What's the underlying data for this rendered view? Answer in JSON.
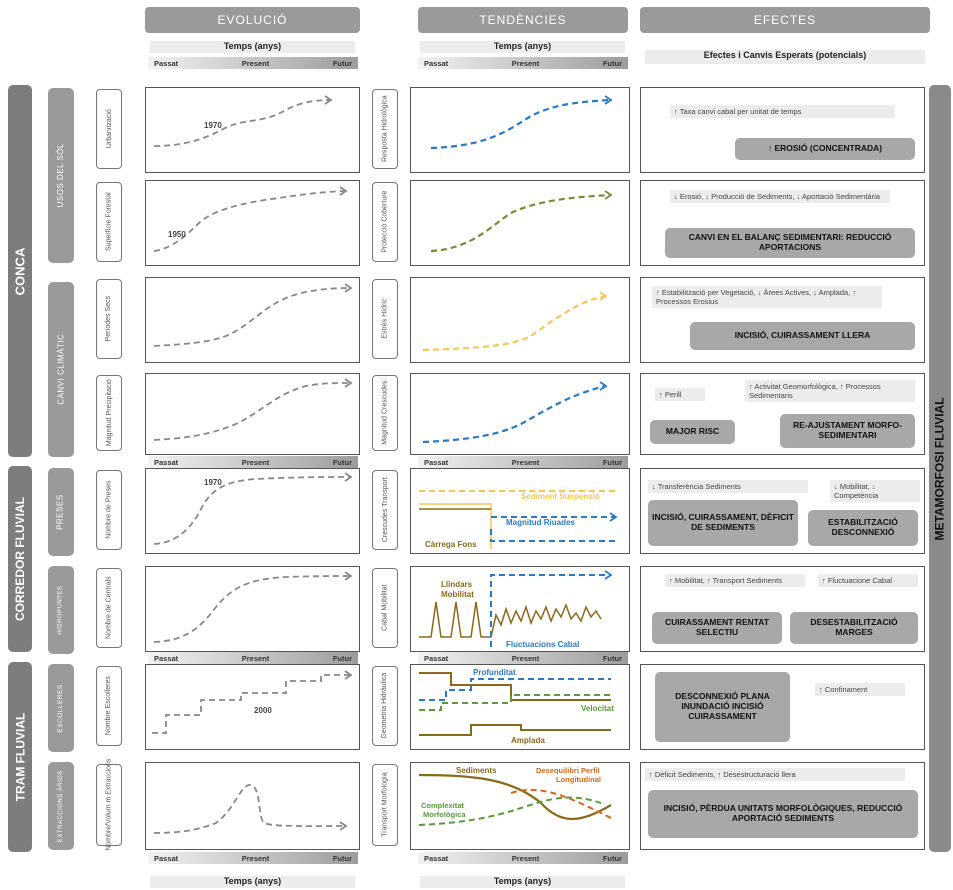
{
  "headers": {
    "evolucio": "EVOLUCIÓ",
    "tendencies": "TENDÈNCIES",
    "efectes": "EFECTES"
  },
  "time_label": "Temps (anys)",
  "effects_subtitle": "Efectes i Canvis Esperats (potencials)",
  "time_bar": {
    "past": "Passat",
    "present": "Present",
    "future": "Futur"
  },
  "groups": {
    "conca": "CONCA",
    "corredor": "CORREDOR FLUVIAL",
    "tram": "TRAM FLUVIAL",
    "metamorfosi": "METAMORFOSI FLUVIAL"
  },
  "categories": {
    "usos": "USOS DEL SÒL",
    "canvi": "CANVI CLIMÀTIC",
    "preses": "PRESES",
    "hidropuntes": "HIDROPUNTES",
    "escolleres": "ESCOLLERES",
    "extraccions": "EXTRACCIONS ÀRIDS"
  },
  "rows": [
    {
      "var": "Urbanització",
      "trend": "Resposta Hidrològica",
      "year": "1970"
    },
    {
      "var": "Superfície Forestal",
      "trend": "Protecció Coberture",
      "year": "1950"
    },
    {
      "var": "Períodes Secs",
      "trend": "Estrès Hídric",
      "year": ""
    },
    {
      "var": "Magnitud Precipitació",
      "trend": "Magnitud Crescudes",
      "year": ""
    },
    {
      "var": "Nombre de Preses",
      "trend": "Crescudes Transport",
      "year": "1970"
    },
    {
      "var": "Nombre de Centrals",
      "trend": "Cabal Mobilitat",
      "year": ""
    },
    {
      "var": "Nombre Escolleres",
      "trend": "Geometria Hidràulica",
      "year": "2000"
    },
    {
      "var": "Nombre/Volum m Extraccions",
      "trend": "Transport Morfologia",
      "year": ""
    }
  ],
  "trend_labels": {
    "sediment_suspensio": "Sediment Suspensió",
    "magnitud_riuades": "Magnitud Riuades",
    "carrega_fons": "Càrrega Fons",
    "llindars": "Llindars",
    "mobilitat": "Mobilitat",
    "fluctuacions_cabal": "Fluctuacions Cabal",
    "profunditat": "Profunditat",
    "velocitat": "Velocitat",
    "amplada": "Amplada",
    "sediments": "Sediments",
    "desequilibri": "Desequilibri Perfil",
    "longitudinal": "Longitudinal",
    "complexitat": "Complexitat",
    "morfologica": "Morfològica"
  },
  "effects": {
    "r1_note": "↑ Taxa canvi cabal per unitat de temps",
    "r1_box": "↑ EROSIÓ (CONCENTRADA)",
    "r2_note": "↓ Erosió, ↓ Producció de Sediments, ↓ Aportació Sedimentària",
    "r2_box": "CANVI EN EL BALANÇ SEDIMENTARI: REDUCCIÓ APORTACIONS",
    "r3_note": "↑ Estabilització per Vegetació, ↓ Àrees Actives, ↓ Amplada, ↑ Processos Erosius",
    "r3_box": "INCISIÓ, CUIRASSAMENT LLERA",
    "r4_note_a": "↑ Perill",
    "r4_note_b": "↑ Activitat Geomorfològica, ↑ Processos Sedimentaris",
    "r4_box_a": "MAJOR RISC",
    "r4_box_b": "RE-AJUSTAMENT MORFO-SEDIMENTARI",
    "r5_note_a": "↓ Transferència Sediments",
    "r5_note_b": "↓ Mobilitat, ↓ Competència",
    "r5_box_a": "INCISIÓ, CUIRASSAMENT, DÈFICIT DE SEDIMENTS",
    "r5_box_b": "ESTABILITZACIÓ DESCONNEXIÓ",
    "r6_note_a": "↑ Mobilitat, ↑ Transport Sediments",
    "r6_note_b": "↑ Fluctuacione Cabal",
    "r6_box_a": "CUIRASSAMENT RENTAT SELECTIU",
    "r6_box_b": "DESESTABILITZACIÓ MARGES",
    "r7_box": "DESCONNEXIÓ PLANA INUNDACIÓ INCISIÓ CUIRASSAMENT",
    "r7_note": "↑ Confinament",
    "r8_note": "↑ Dèficit Sediments, ↑ Desestructuració llera",
    "r8_box": "INCISIÓ, PÈRDUA UNITATS MORFOLÒGIQUES, REDUCCIÓ APORTACIÓ SEDIMENTS"
  },
  "colors": {
    "gray": "#9a9a9a",
    "blue": "#2a79c4",
    "olive": "#7a8a3a",
    "yellow": "#f5c75a",
    "brown": "#8a6a1a",
    "green": "#5a9a3a",
    "orange": "#d2691e"
  }
}
